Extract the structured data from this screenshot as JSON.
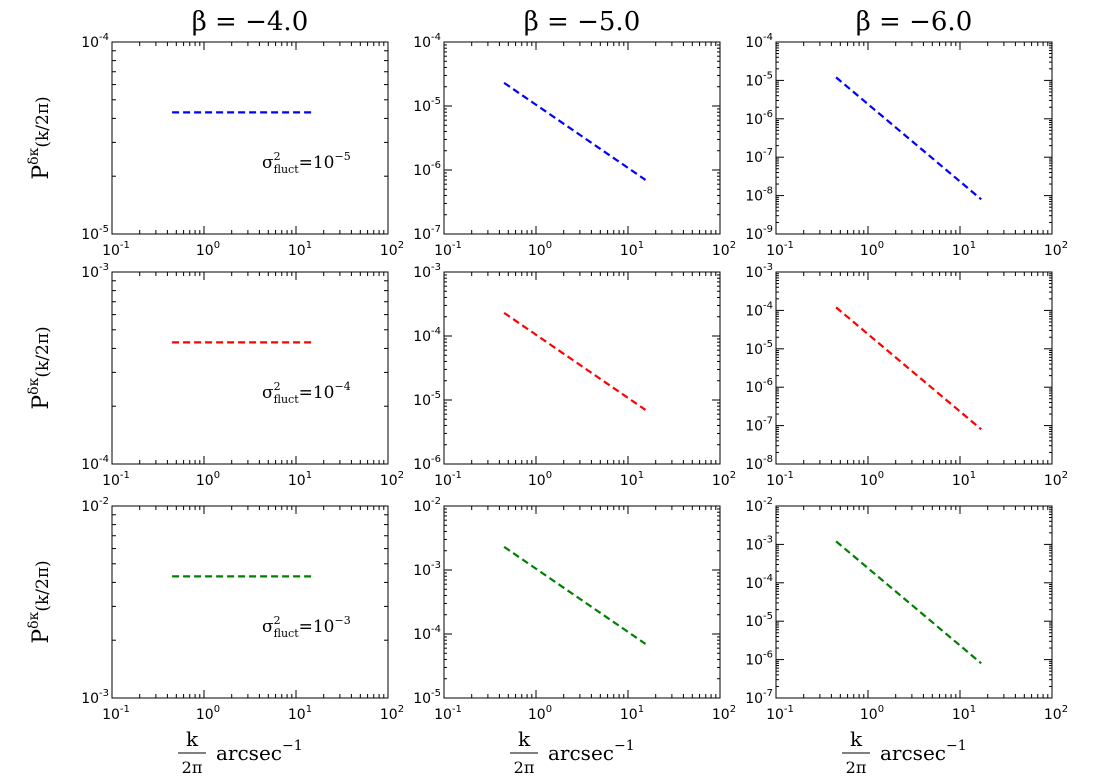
{
  "figure": {
    "columns": [
      {
        "title": "β = −4.0",
        "xlabel_main": "k",
        "xlabel_den": "2π",
        "xlabel_unit": "arcsec",
        "xlabel_exp": "−1"
      },
      {
        "title": "β = −5.0",
        "xlabel_main": "k",
        "xlabel_den": "2π",
        "xlabel_unit": "arcsec",
        "xlabel_exp": "−1"
      },
      {
        "title": "β = −6.0",
        "xlabel_main": "k",
        "xlabel_den": "2π",
        "xlabel_unit": "arcsec",
        "xlabel_exp": "−1"
      }
    ],
    "rows": [
      {
        "ylabel": "P",
        "ylabel_sup": "δκ",
        "ylabel_arg": "(k/2π)",
        "annotation_main": "σ",
        "annotation_sub": "fluct",
        "annotation_sup": "2",
        "annotation_val": "=10",
        "annotation_exp": "−5"
      },
      {
        "ylabel": "P",
        "ylabel_sup": "δκ",
        "ylabel_arg": "(k/2π)",
        "annotation_main": "σ",
        "annotation_sub": "fluct",
        "annotation_sup": "2",
        "annotation_val": "=10",
        "annotation_exp": "−4"
      },
      {
        "ylabel": "P",
        "ylabel_sup": "δκ",
        "ylabel_arg": "(k/2π)",
        "annotation_main": "σ",
        "annotation_sub": "fluct",
        "annotation_sup": "2",
        "annotation_val": "=10",
        "annotation_exp": "−3"
      }
    ]
  },
  "colors": {
    "row0": "#0000ff",
    "row1": "#ff0000",
    "row2": "#008000"
  },
  "chart_data": [
    {
      "type": "line",
      "row": 0,
      "col": 0,
      "xscale": "log",
      "yscale": "log",
      "xlim_exp": [
        -1,
        2
      ],
      "ylim_exp": [
        -5,
        -4
      ],
      "x": [
        0.45,
        15.5
      ],
      "y": [
        4.3e-05,
        4.3e-05
      ],
      "style": "dashed",
      "color": "blue"
    },
    {
      "type": "line",
      "row": 0,
      "col": 1,
      "xscale": "log",
      "yscale": "log",
      "xlim_exp": [
        -1,
        2
      ],
      "ylim_exp": [
        -7,
        -4
      ],
      "x": [
        0.45,
        15.5
      ],
      "y": [
        2.3e-05,
        7e-07
      ],
      "style": "dashed",
      "color": "blue"
    },
    {
      "type": "line",
      "row": 0,
      "col": 2,
      "xscale": "log",
      "yscale": "log",
      "xlim_exp": [
        -1,
        2
      ],
      "ylim_exp": [
        -9,
        -4
      ],
      "x": [
        0.45,
        17
      ],
      "y": [
        1.2e-05,
        8e-09
      ],
      "style": "dashed",
      "color": "blue"
    },
    {
      "type": "line",
      "row": 1,
      "col": 0,
      "xscale": "log",
      "yscale": "log",
      "xlim_exp": [
        -1,
        2
      ],
      "ylim_exp": [
        -4,
        -3
      ],
      "x": [
        0.45,
        15.5
      ],
      "y": [
        0.00043,
        0.00043
      ],
      "style": "dashed",
      "color": "red"
    },
    {
      "type": "line",
      "row": 1,
      "col": 1,
      "xscale": "log",
      "yscale": "log",
      "xlim_exp": [
        -1,
        2
      ],
      "ylim_exp": [
        -6,
        -3
      ],
      "x": [
        0.45,
        15.5
      ],
      "y": [
        0.00023,
        7e-06
      ],
      "style": "dashed",
      "color": "red"
    },
    {
      "type": "line",
      "row": 1,
      "col": 2,
      "xscale": "log",
      "yscale": "log",
      "xlim_exp": [
        -1,
        2
      ],
      "ylim_exp": [
        -8,
        -3
      ],
      "x": [
        0.45,
        17
      ],
      "y": [
        0.00012,
        8e-08
      ],
      "style": "dashed",
      "color": "red"
    },
    {
      "type": "line",
      "row": 2,
      "col": 0,
      "xscale": "log",
      "yscale": "log",
      "xlim_exp": [
        -1,
        2
      ],
      "ylim_exp": [
        -3,
        -2
      ],
      "x": [
        0.45,
        15.5
      ],
      "y": [
        0.0043,
        0.0043
      ],
      "style": "dashed",
      "color": "green"
    },
    {
      "type": "line",
      "row": 2,
      "col": 1,
      "xscale": "log",
      "yscale": "log",
      "xlim_exp": [
        -1,
        2
      ],
      "ylim_exp": [
        -5,
        -2
      ],
      "x": [
        0.45,
        15.5
      ],
      "y": [
        0.0023,
        7e-05
      ],
      "style": "dashed",
      "color": "green"
    },
    {
      "type": "line",
      "row": 2,
      "col": 2,
      "xscale": "log",
      "yscale": "log",
      "xlim_exp": [
        -1,
        2
      ],
      "ylim_exp": [
        -7,
        -2
      ],
      "x": [
        0.45,
        17
      ],
      "y": [
        0.0012,
        8e-07
      ],
      "style": "dashed",
      "color": "green"
    }
  ]
}
